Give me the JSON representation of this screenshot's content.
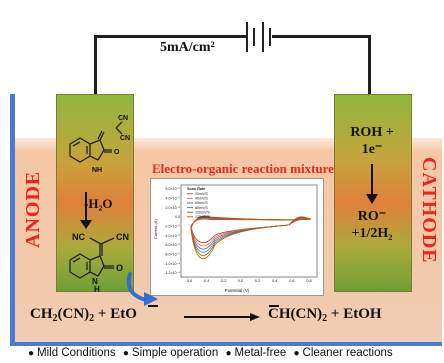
{
  "circuit": {
    "current_density": "5mA/cm²"
  },
  "anode": {
    "label": "ANODE",
    "step": "-H₂O",
    "reactant_groups": [
      "CN",
      "CN",
      "NH",
      "O"
    ],
    "product_groups": [
      "NC",
      "CN",
      "N",
      "H",
      "O"
    ]
  },
  "cathode": {
    "label": "CATHODE",
    "input_line1": "ROH +",
    "input_line2": "1e⁻",
    "output_line1": "RO⁻",
    "output_line2": "+1/2H₂"
  },
  "mixture": {
    "title": "Electro-organic reaction mixture"
  },
  "equation": {
    "left_a": "CH",
    "left_sub1": "2",
    "left_b": "(CN)",
    "left_sub2": "2",
    "left_c": " + EtO",
    "right_a": "CH(CN)",
    "right_sub": "2",
    "right_b": " + EtOH"
  },
  "inset_plot": {
    "legend_title": "Scan Rate",
    "legend_entries": [
      "20mV/S",
      "40mV/S",
      "60mV/S",
      "80mV/S",
      "100mV/S",
      "120mV/S"
    ],
    "xlabel": "Potential (V)",
    "ylabel": "Current (A)",
    "x_ticks": [
      "-0.6",
      "-0.4",
      "-0.2",
      "0.0",
      "0.2",
      "0.4",
      "0.6",
      "0.8"
    ],
    "y_ticks": [
      "6.0×10⁻⁵",
      "4.0×10⁻⁵",
      "2.0×10⁻⁵",
      "0.0",
      "-2.0×10⁻⁵",
      "-4.0×10⁻⁵",
      "-6.0×10⁻⁵",
      "-8.0×10⁻⁵",
      "-1.0×10⁻⁴",
      "-1.2×10⁻⁴"
    ],
    "series_colors": [
      "#c0392b",
      "#e67e22",
      "#8e44ad",
      "#2e86c1",
      "#7d6608",
      "#d35400"
    ]
  },
  "footer": {
    "items": [
      "Mild Conditions",
      "Simple operation",
      "Metal-free",
      "Cleaner reactions"
    ]
  }
}
